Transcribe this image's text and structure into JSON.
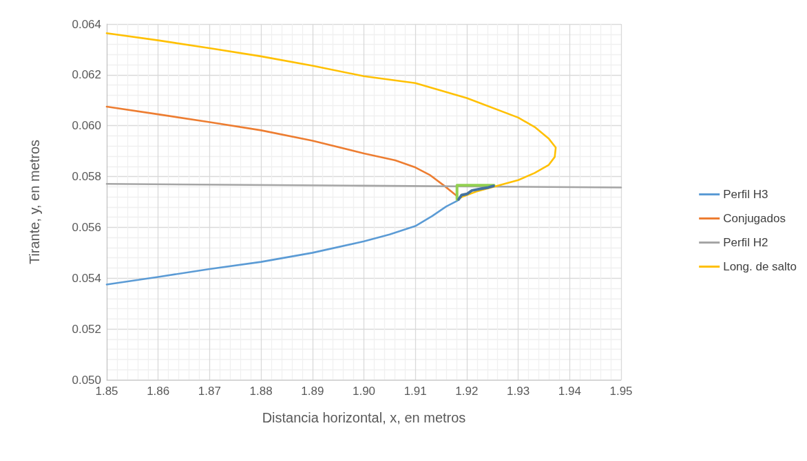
{
  "chart_data": {
    "type": "line",
    "xlabel": "Distancia horizontal, x, en metros",
    "ylabel": "Tirante, y, en metros",
    "xlim": [
      1.85,
      1.95
    ],
    "ylim": [
      0.05,
      0.064
    ],
    "xticks": [
      1.85,
      1.86,
      1.87,
      1.88,
      1.89,
      {
        "value": 1.9,
        "label": "1.90"
      },
      1.91,
      1.92,
      1.93,
      1.94,
      1.95
    ],
    "yticks": [
      {
        "value": 0.05,
        "label": "0.050"
      },
      0.052,
      0.054,
      0.056,
      0.058,
      {
        "value": 0.06,
        "label": "0.060"
      },
      0.062,
      0.064
    ],
    "grid": true,
    "legend": "right",
    "series": [
      {
        "name": "Perfil H3",
        "color": "#5b9bd5",
        "x": [
          1.85,
          1.86,
          1.87,
          1.88,
          1.89,
          1.9,
          1.905,
          1.91,
          1.9133,
          1.916,
          1.9182
        ],
        "values": [
          0.05375,
          0.05405,
          0.05436,
          0.05464,
          0.055,
          0.05545,
          0.05572,
          0.05605,
          0.05645,
          0.05682,
          0.05705
        ]
      },
      {
        "name": "Conjugados",
        "color": "#ed7d31",
        "x": [
          1.85,
          1.86,
          1.87,
          1.88,
          1.89,
          1.9,
          1.9061,
          1.91,
          1.9129,
          1.9156,
          1.9181
        ],
        "values": [
          0.06075,
          0.06045,
          0.06014,
          0.05982,
          0.05941,
          0.05891,
          0.05864,
          0.05836,
          0.05805,
          0.05764,
          0.05723
        ]
      },
      {
        "name": "Perfil H2",
        "color": "#a5a5a5",
        "x": [
          1.85,
          1.9,
          1.95
        ],
        "values": [
          0.05771,
          0.05764,
          0.05757
        ]
      },
      {
        "name": "Long. de salto",
        "color": "#ffc000",
        "x": [
          1.85,
          1.86,
          1.87,
          1.88,
          1.89,
          1.9,
          1.91,
          1.92,
          1.93,
          1.9332,
          1.9359,
          1.9373,
          1.9371,
          1.9359,
          1.9332,
          1.93,
          1.9251,
          1.9219,
          1.9192,
          1.9185
        ],
        "values": [
          0.06364,
          0.06336,
          0.06305,
          0.06273,
          0.06236,
          0.06195,
          0.06168,
          0.06109,
          0.06032,
          0.05995,
          0.0595,
          0.05914,
          0.05877,
          0.05845,
          0.05814,
          0.05786,
          0.05759,
          0.05741,
          0.05721,
          0.05714
        ]
      },
      {
        "color": "#92d050",
        "x": [
          1.9181,
          1.9181,
          1.9253
        ],
        "values": [
          0.0571,
          0.05766,
          0.05766
        ]
      },
      {
        "color": "#44729f",
        "x": [
          1.9184,
          1.919,
          1.9201,
          1.921,
          1.9228,
          1.9242,
          1.9252
        ],
        "values": [
          0.0571,
          0.05727,
          0.05732,
          0.05745,
          0.05752,
          0.05757,
          0.05763
        ]
      }
    ]
  }
}
